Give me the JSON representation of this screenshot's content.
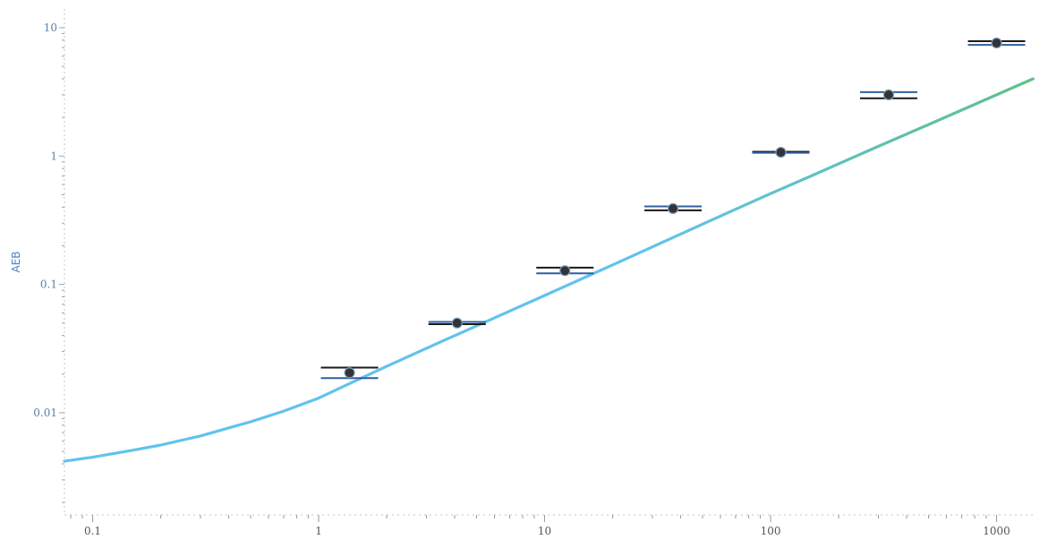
{
  "chart_data": {
    "type": "scatter",
    "title": "",
    "xlabel": "",
    "ylabel": "AEB",
    "x_scale": "log",
    "y_scale": "log",
    "xlim": [
      0.075,
      1500
    ],
    "ylim": [
      0.0016,
      14
    ],
    "grid": false,
    "legend": "none",
    "x_ticks": [
      {
        "value": 0.1,
        "label": "0.1"
      },
      {
        "value": 1,
        "label": "1"
      },
      {
        "value": 10,
        "label": "10"
      },
      {
        "value": 100,
        "label": "100"
      },
      {
        "value": 1000,
        "label": "1000"
      }
    ],
    "y_ticks": [
      {
        "value": 0.01,
        "label": "0.01"
      },
      {
        "value": 0.1,
        "label": "0.1"
      },
      {
        "value": 1,
        "label": "1"
      },
      {
        "value": 10,
        "label": "10"
      }
    ],
    "points": [
      {
        "x": 1.37,
        "y": 0.0205,
        "y_upper": 0.0225,
        "y_lower": 0.0186
      },
      {
        "x": 4.1,
        "y": 0.05,
        "y_upper": 0.051,
        "y_lower": 0.049
      },
      {
        "x": 12.3,
        "y": 0.128,
        "y_upper": 0.135,
        "y_lower": 0.122
      },
      {
        "x": 37,
        "y": 0.39,
        "y_upper": 0.405,
        "y_lower": 0.378
      },
      {
        "x": 111,
        "y": 1.07,
        "y_upper": 1.08,
        "y_lower": 1.06
      },
      {
        "x": 333,
        "y": 3.0,
        "y_upper": 3.15,
        "y_lower": 2.82
      },
      {
        "x": 1000,
        "y": 7.6,
        "y_upper": 7.85,
        "y_lower": 7.35
      }
    ],
    "fit_curve": {
      "x": [
        0.075,
        0.1,
        0.15,
        0.2,
        0.3,
        0.5,
        0.7,
        1,
        1.5,
        2,
        3,
        5,
        7,
        10,
        15,
        20,
        30,
        50,
        70,
        100,
        150,
        200,
        300,
        500,
        700,
        1000,
        1450
      ],
      "y": [
        0.0042,
        0.0045,
        0.0051,
        0.0056,
        0.0066,
        0.0085,
        0.0103,
        0.013,
        0.0182,
        0.023,
        0.0318,
        0.0475,
        0.062,
        0.082,
        0.113,
        0.142,
        0.196,
        0.295,
        0.385,
        0.51,
        0.695,
        0.87,
        1.19,
        1.76,
        2.28,
        3.0,
        4.0
      ],
      "colors": [
        "#62c2ec",
        "#5fc08a"
      ]
    },
    "marker_color": "#333333",
    "errorbar_colors": [
      "#1a1a1a",
      "#2f5fa0"
    ]
  }
}
